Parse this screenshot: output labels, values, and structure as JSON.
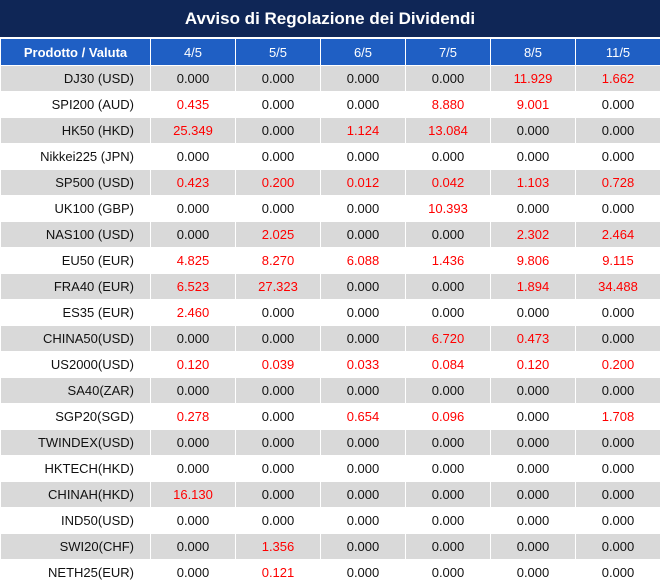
{
  "title": "Avviso di Regolazione dei Dividendi",
  "table": {
    "headers": [
      "Prodotto / Valuta",
      "4/5",
      "5/5",
      "6/5",
      "7/5",
      "8/5",
      "11/5"
    ],
    "rows": [
      {
        "product": "DJ30 (USD)",
        "values": [
          "0.000",
          "0.000",
          "0.000",
          "0.000",
          "11.929",
          "1.662"
        ]
      },
      {
        "product": "SPI200 (AUD)",
        "values": [
          "0.435",
          "0.000",
          "0.000",
          "8.880",
          "9.001",
          "0.000"
        ]
      },
      {
        "product": "HK50 (HKD)",
        "values": [
          "25.349",
          "0.000",
          "1.124",
          "13.084",
          "0.000",
          "0.000"
        ]
      },
      {
        "product": "Nikkei225 (JPN)",
        "values": [
          "0.000",
          "0.000",
          "0.000",
          "0.000",
          "0.000",
          "0.000"
        ]
      },
      {
        "product": "SP500 (USD)",
        "values": [
          "0.423",
          "0.200",
          "0.012",
          "0.042",
          "1.103",
          "0.728"
        ]
      },
      {
        "product": "UK100 (GBP)",
        "values": [
          "0.000",
          "0.000",
          "0.000",
          "10.393",
          "0.000",
          "0.000"
        ]
      },
      {
        "product": "NAS100 (USD)",
        "values": [
          "0.000",
          "2.025",
          "0.000",
          "0.000",
          "2.302",
          "2.464"
        ]
      },
      {
        "product": "EU50 (EUR)",
        "values": [
          "4.825",
          "8.270",
          "6.088",
          "1.436",
          "9.806",
          "9.115"
        ]
      },
      {
        "product": "FRA40 (EUR)",
        "values": [
          "6.523",
          "27.323",
          "0.000",
          "0.000",
          "1.894",
          "34.488"
        ]
      },
      {
        "product": "ES35 (EUR)",
        "values": [
          "2.460",
          "0.000",
          "0.000",
          "0.000",
          "0.000",
          "0.000"
        ]
      },
      {
        "product": "CHINA50(USD)",
        "values": [
          "0.000",
          "0.000",
          "0.000",
          "6.720",
          "0.473",
          "0.000"
        ]
      },
      {
        "product": "US2000(USD)",
        "values": [
          "0.120",
          "0.039",
          "0.033",
          "0.084",
          "0.120",
          "0.200"
        ]
      },
      {
        "product": "SA40(ZAR)",
        "values": [
          "0.000",
          "0.000",
          "0.000",
          "0.000",
          "0.000",
          "0.000"
        ]
      },
      {
        "product": "SGP20(SGD)",
        "values": [
          "0.278",
          "0.000",
          "0.654",
          "0.096",
          "0.000",
          "1.708"
        ]
      },
      {
        "product": "TWINDEX(USD)",
        "values": [
          "0.000",
          "0.000",
          "0.000",
          "0.000",
          "0.000",
          "0.000"
        ]
      },
      {
        "product": "HKTECH(HKD)",
        "values": [
          "0.000",
          "0.000",
          "0.000",
          "0.000",
          "0.000",
          "0.000"
        ]
      },
      {
        "product": "CHINAH(HKD)",
        "values": [
          "16.130",
          "0.000",
          "0.000",
          "0.000",
          "0.000",
          "0.000"
        ]
      },
      {
        "product": "IND50(USD)",
        "values": [
          "0.000",
          "0.000",
          "0.000",
          "0.000",
          "0.000",
          "0.000"
        ]
      },
      {
        "product": "SWI20(CHF)",
        "values": [
          "0.000",
          "1.356",
          "0.000",
          "0.000",
          "0.000",
          "0.000"
        ]
      },
      {
        "product": "NETH25(EUR)",
        "values": [
          "0.000",
          "0.121",
          "0.000",
          "0.000",
          "0.000",
          "0.000"
        ]
      }
    ]
  },
  "colors": {
    "title_bg": "#0f2656",
    "header_bg": "#1f5fc4",
    "stripe": "#d9d9d9",
    "highlight_text": "#ff0000"
  }
}
